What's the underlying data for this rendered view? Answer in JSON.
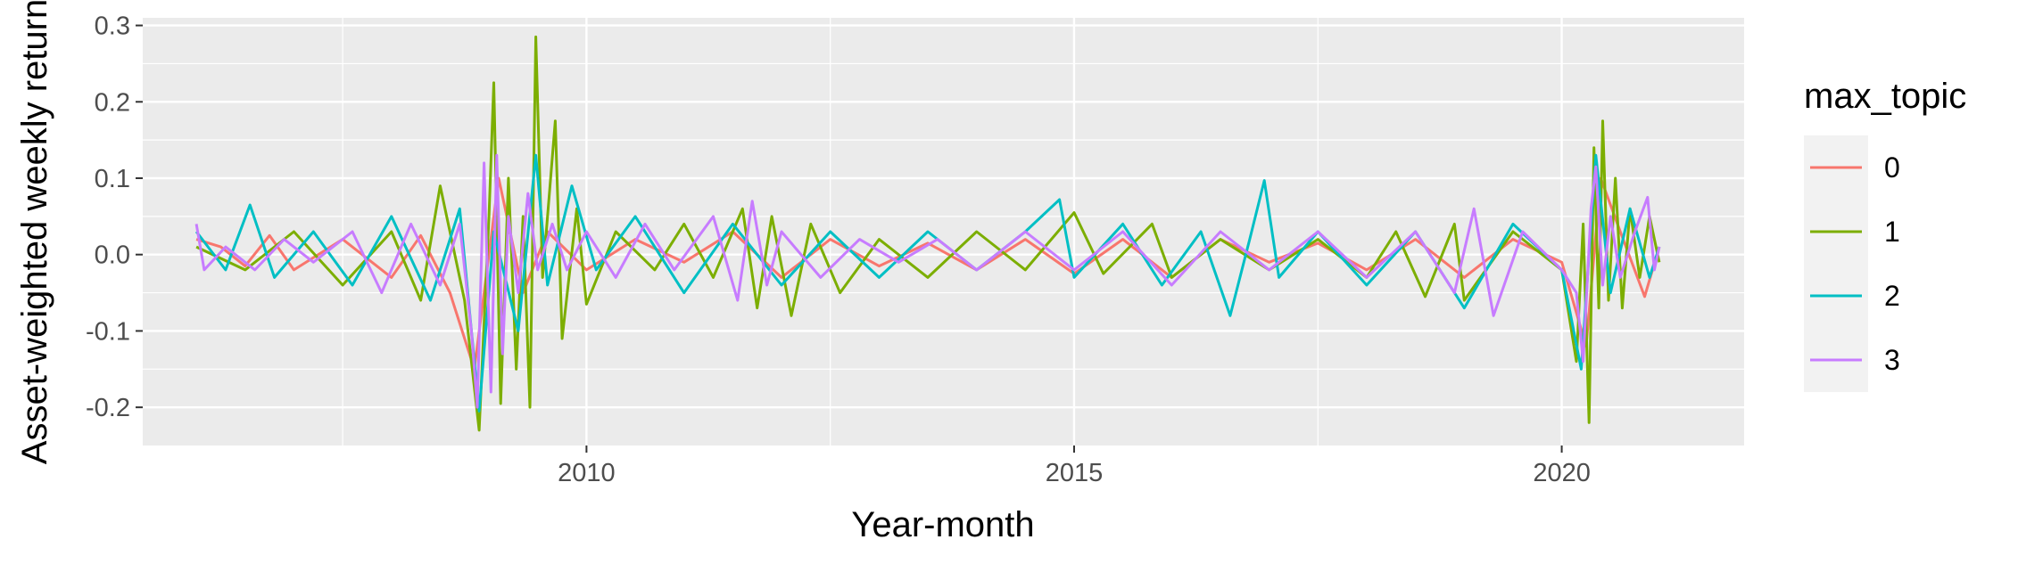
{
  "chart_data": {
    "type": "line",
    "title": "",
    "xlabel": "Year-month",
    "ylabel": "Asset-weighted weekly return",
    "xlim": [
      2005.45,
      2021.87
    ],
    "ylim": [
      -0.25,
      0.31
    ],
    "x_ticks": [
      2010,
      2015,
      2020
    ],
    "x_tick_labels": [
      "2010",
      "2015",
      "2020"
    ],
    "y_ticks": [
      -0.2,
      -0.1,
      0.0,
      0.1,
      0.2,
      0.3
    ],
    "y_tick_labels": [
      "-0.2",
      "-0.1",
      "0.0",
      "0.1",
      "0.2",
      "0.3"
    ],
    "grid": true,
    "legend": {
      "title": "max_topic",
      "position": "right"
    },
    "series": [
      {
        "name": "0",
        "color": "#F8766D",
        "points": [
          [
            2006.0,
            0.02
          ],
          [
            2006.25,
            0.01
          ],
          [
            2006.5,
            -0.015
          ],
          [
            2006.75,
            0.025
          ],
          [
            2007.0,
            -0.02
          ],
          [
            2007.5,
            0.02
          ],
          [
            2008.0,
            -0.03
          ],
          [
            2008.3,
            0.025
          ],
          [
            2008.6,
            -0.05
          ],
          [
            2008.85,
            -0.15
          ],
          [
            2009.1,
            0.1
          ],
          [
            2009.35,
            -0.05
          ],
          [
            2009.6,
            0.03
          ],
          [
            2010.0,
            -0.02
          ],
          [
            2010.5,
            0.02
          ],
          [
            2011.0,
            -0.01
          ],
          [
            2011.5,
            0.03
          ],
          [
            2012.0,
            -0.03
          ],
          [
            2012.5,
            0.02
          ],
          [
            2013.0,
            -0.015
          ],
          [
            2013.5,
            0.015
          ],
          [
            2014.0,
            -0.02
          ],
          [
            2014.5,
            0.02
          ],
          [
            2015.0,
            -0.025
          ],
          [
            2015.5,
            0.02
          ],
          [
            2016.0,
            -0.03
          ],
          [
            2016.5,
            0.02
          ],
          [
            2017.0,
            -0.01
          ],
          [
            2017.5,
            0.015
          ],
          [
            2018.0,
            -0.02
          ],
          [
            2018.5,
            0.02
          ],
          [
            2019.0,
            -0.03
          ],
          [
            2019.5,
            0.02
          ],
          [
            2020.0,
            -0.01
          ],
          [
            2020.25,
            -0.12
          ],
          [
            2020.4,
            0.1
          ],
          [
            2020.6,
            0.03
          ],
          [
            2020.85,
            -0.055
          ],
          [
            2021.0,
            0.01
          ]
        ]
      },
      {
        "name": "1",
        "color": "#7CAE00",
        "points": [
          [
            2006.0,
            0.01
          ],
          [
            2006.5,
            -0.02
          ],
          [
            2007.0,
            0.03
          ],
          [
            2007.5,
            -0.04
          ],
          [
            2008.0,
            0.03
          ],
          [
            2008.3,
            -0.06
          ],
          [
            2008.5,
            0.09
          ],
          [
            2008.75,
            -0.06
          ],
          [
            2008.9,
            -0.23
          ],
          [
            2009.0,
            0.05
          ],
          [
            2009.05,
            0.225
          ],
          [
            2009.12,
            -0.195
          ],
          [
            2009.2,
            0.1
          ],
          [
            2009.28,
            -0.15
          ],
          [
            2009.35,
            0.05
          ],
          [
            2009.42,
            -0.2
          ],
          [
            2009.48,
            0.285
          ],
          [
            2009.55,
            -0.03
          ],
          [
            2009.68,
            0.175
          ],
          [
            2009.75,
            -0.11
          ],
          [
            2009.9,
            0.06
          ],
          [
            2010.0,
            -0.065
          ],
          [
            2010.3,
            0.03
          ],
          [
            2010.7,
            -0.02
          ],
          [
            2011.0,
            0.04
          ],
          [
            2011.3,
            -0.03
          ],
          [
            2011.6,
            0.06
          ],
          [
            2011.75,
            -0.07
          ],
          [
            2011.9,
            0.05
          ],
          [
            2012.1,
            -0.08
          ],
          [
            2012.3,
            0.04
          ],
          [
            2012.6,
            -0.05
          ],
          [
            2013.0,
            0.02
          ],
          [
            2013.5,
            -0.03
          ],
          [
            2014.0,
            0.03
          ],
          [
            2014.5,
            -0.02
          ],
          [
            2015.0,
            0.055
          ],
          [
            2015.3,
            -0.025
          ],
          [
            2015.8,
            0.04
          ],
          [
            2016.0,
            -0.03
          ],
          [
            2016.5,
            0.02
          ],
          [
            2017.0,
            -0.02
          ],
          [
            2017.5,
            0.02
          ],
          [
            2018.0,
            -0.03
          ],
          [
            2018.3,
            0.03
          ],
          [
            2018.6,
            -0.055
          ],
          [
            2018.9,
            0.04
          ],
          [
            2019.0,
            -0.06
          ],
          [
            2019.5,
            0.03
          ],
          [
            2020.0,
            -0.02
          ],
          [
            2020.15,
            -0.14
          ],
          [
            2020.22,
            0.04
          ],
          [
            2020.28,
            -0.22
          ],
          [
            2020.33,
            0.14
          ],
          [
            2020.38,
            -0.07
          ],
          [
            2020.42,
            0.175
          ],
          [
            2020.48,
            -0.06
          ],
          [
            2020.55,
            0.1
          ],
          [
            2020.62,
            -0.07
          ],
          [
            2020.7,
            0.06
          ],
          [
            2020.8,
            -0.03
          ],
          [
            2020.9,
            0.05
          ],
          [
            2021.0,
            -0.01
          ]
        ]
      },
      {
        "name": "2",
        "color": "#00BFC4",
        "points": [
          [
            2006.0,
            0.03
          ],
          [
            2006.3,
            -0.02
          ],
          [
            2006.55,
            0.065
          ],
          [
            2006.8,
            -0.03
          ],
          [
            2007.2,
            0.03
          ],
          [
            2007.6,
            -0.04
          ],
          [
            2008.0,
            0.05
          ],
          [
            2008.4,
            -0.06
          ],
          [
            2008.7,
            0.06
          ],
          [
            2008.9,
            -0.205
          ],
          [
            2009.05,
            0.03
          ],
          [
            2009.3,
            -0.1
          ],
          [
            2009.48,
            0.13
          ],
          [
            2009.6,
            -0.04
          ],
          [
            2009.85,
            0.09
          ],
          [
            2010.1,
            -0.02
          ],
          [
            2010.5,
            0.05
          ],
          [
            2011.0,
            -0.05
          ],
          [
            2011.5,
            0.04
          ],
          [
            2012.0,
            -0.04
          ],
          [
            2012.5,
            0.03
          ],
          [
            2013.0,
            -0.03
          ],
          [
            2013.5,
            0.03
          ],
          [
            2014.0,
            -0.02
          ],
          [
            2014.5,
            0.03
          ],
          [
            2014.85,
            0.072
          ],
          [
            2015.0,
            -0.03
          ],
          [
            2015.5,
            0.04
          ],
          [
            2015.9,
            -0.04
          ],
          [
            2016.3,
            0.03
          ],
          [
            2016.6,
            -0.08
          ],
          [
            2016.8,
            0.02
          ],
          [
            2016.95,
            0.097
          ],
          [
            2017.1,
            -0.03
          ],
          [
            2017.5,
            0.03
          ],
          [
            2018.0,
            -0.04
          ],
          [
            2018.5,
            0.03
          ],
          [
            2019.0,
            -0.07
          ],
          [
            2019.5,
            0.04
          ],
          [
            2020.0,
            -0.02
          ],
          [
            2020.2,
            -0.15
          ],
          [
            2020.35,
            0.13
          ],
          [
            2020.5,
            -0.05
          ],
          [
            2020.7,
            0.06
          ],
          [
            2020.9,
            -0.03
          ],
          [
            2021.0,
            0.01
          ]
        ]
      },
      {
        "name": "3",
        "color": "#C77CFF",
        "points": [
          [
            2006.0,
            0.04
          ],
          [
            2006.08,
            -0.02
          ],
          [
            2006.3,
            0.01
          ],
          [
            2006.6,
            -0.02
          ],
          [
            2006.9,
            0.02
          ],
          [
            2007.2,
            -0.01
          ],
          [
            2007.6,
            0.03
          ],
          [
            2007.9,
            -0.05
          ],
          [
            2008.2,
            0.04
          ],
          [
            2008.5,
            -0.04
          ],
          [
            2008.7,
            0.04
          ],
          [
            2008.82,
            -0.1
          ],
          [
            2008.88,
            -0.2
          ],
          [
            2008.95,
            0.12
          ],
          [
            2009.02,
            -0.18
          ],
          [
            2009.08,
            0.13
          ],
          [
            2009.14,
            -0.13
          ],
          [
            2009.2,
            0.05
          ],
          [
            2009.3,
            -0.05
          ],
          [
            2009.4,
            0.08
          ],
          [
            2009.5,
            -0.02
          ],
          [
            2009.65,
            0.04
          ],
          [
            2009.8,
            -0.02
          ],
          [
            2010.0,
            0.03
          ],
          [
            2010.3,
            -0.03
          ],
          [
            2010.6,
            0.04
          ],
          [
            2010.9,
            -0.02
          ],
          [
            2011.3,
            0.05
          ],
          [
            2011.55,
            -0.06
          ],
          [
            2011.7,
            0.07
          ],
          [
            2011.85,
            -0.04
          ],
          [
            2012.0,
            0.03
          ],
          [
            2012.4,
            -0.03
          ],
          [
            2012.8,
            0.02
          ],
          [
            2013.2,
            -0.01
          ],
          [
            2013.6,
            0.02
          ],
          [
            2014.0,
            -0.02
          ],
          [
            2014.5,
            0.03
          ],
          [
            2015.0,
            -0.02
          ],
          [
            2015.5,
            0.03
          ],
          [
            2016.0,
            -0.04
          ],
          [
            2016.5,
            0.03
          ],
          [
            2017.0,
            -0.02
          ],
          [
            2017.5,
            0.03
          ],
          [
            2018.0,
            -0.03
          ],
          [
            2018.5,
            0.03
          ],
          [
            2018.9,
            -0.05
          ],
          [
            2019.1,
            0.06
          ],
          [
            2019.3,
            -0.08
          ],
          [
            2019.6,
            0.03
          ],
          [
            2020.0,
            -0.02
          ],
          [
            2020.15,
            -0.05
          ],
          [
            2020.22,
            -0.14
          ],
          [
            2020.3,
            0.06
          ],
          [
            2020.35,
            0.115
          ],
          [
            2020.42,
            -0.04
          ],
          [
            2020.5,
            0.05
          ],
          [
            2020.6,
            -0.03
          ],
          [
            2020.75,
            0.03
          ],
          [
            2020.88,
            0.075
          ],
          [
            2020.95,
            -0.02
          ],
          [
            2021.0,
            0.01
          ]
        ]
      }
    ]
  }
}
